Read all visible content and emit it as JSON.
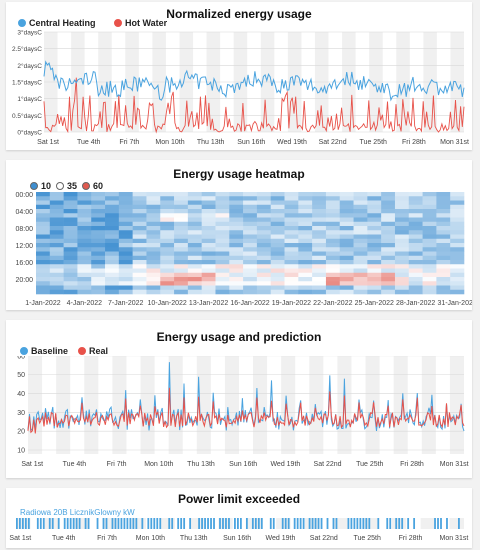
{
  "charts": {
    "energy": {
      "title": "Normalized energy usage",
      "legend": [
        {
          "name": "Central Heating",
          "color": "#4aa3df"
        },
        {
          "name": "Hot Water",
          "color": "#e8524a"
        }
      ],
      "yticks": [
        "0°daysC",
        "0.5°daysC",
        "1°daysC",
        "1.5°daysC",
        "2°daysC",
        "2.5°daysC",
        "3°daysC"
      ],
      "xticks": [
        "Sat 1st",
        "Tue 4th",
        "Fri 7th",
        "Mon 10th",
        "Thu 13th",
        "Sun 16th",
        "Wed 19th",
        "Sat 22nd",
        "Tue 25th",
        "Fri 28th",
        "Mon 31st"
      ]
    },
    "heatmap": {
      "title": "Energy usage heatmap",
      "legend": [
        {
          "name": "10",
          "color": "#3e8ed0"
        },
        {
          "name": "35",
          "color": "#ffffff"
        },
        {
          "name": "60",
          "color": "#e05a4f"
        }
      ],
      "yticks": [
        "00:00",
        "04:00",
        "08:00",
        "12:00",
        "16:00",
        "20:00"
      ],
      "xticks": [
        "1-Jan-2022",
        "4-Jan-2022",
        "7-Jan-2022",
        "10-Jan-2022",
        "13-Jan-2022",
        "16-Jan-2022",
        "19-Jan-2022",
        "22-Jan-2022",
        "25-Jan-2022",
        "28-Jan-2022",
        "31-Jan-2022"
      ]
    },
    "prediction": {
      "title": "Energy usage and prediction",
      "legend": [
        {
          "name": "Baseline",
          "color": "#4aa3df"
        },
        {
          "name": "Real",
          "color": "#e8524a"
        }
      ],
      "yticks": [
        "10",
        "20",
        "30",
        "40",
        "50",
        "60"
      ],
      "xticks": [
        "Sat 1st",
        "Tue 4th",
        "Fri 7th",
        "Mon 10th",
        "Thu 13th",
        "Sun 16th",
        "Wed 19th",
        "Sat 22nd",
        "Tue 25th",
        "Fri 28th",
        "Mon 31st"
      ]
    },
    "power": {
      "title": "Power limit exceeded",
      "series_label": "Radiowa 20B LicznikGlowny kW",
      "color": "#4aa3df",
      "xticks": [
        "Sat 1st",
        "Tue 4th",
        "Fri 7th",
        "Mon 10th",
        "Thu 13th",
        "Sun 16th",
        "Wed 19th",
        "Sat 22nd",
        "Tue 25th",
        "Fri 28th",
        "Mon 31st"
      ]
    }
  },
  "chart_data": [
    {
      "type": "line",
      "title": "Normalized energy usage",
      "x_range": [
        "Sat 1st",
        "Mon 31st"
      ],
      "ylim": [
        0,
        3
      ],
      "series": [
        {
          "name": "Central Heating",
          "approx_daily_mean": [
            1.5,
            1.4,
            1.5,
            1.6,
            1.3,
            1.3,
            1.4,
            1.5,
            1.2,
            1.4,
            1.6,
            1.5,
            1.4,
            1.3,
            1.4,
            1.6,
            1.6,
            1.4,
            1.5,
            1.4,
            1.3,
            1.5,
            1.6,
            1.5,
            1.4,
            1.2,
            1.3,
            1.4,
            1.4,
            1.3,
            1.3
          ]
        },
        {
          "name": "Hot Water",
          "approx_daily_peak": [
            1.0,
            1.6,
            1.8,
            1.1,
            1.0,
            1.2,
            1.1,
            1.2,
            1.1,
            1.3,
            1.1,
            1.2,
            1.0,
            1.2,
            1.1,
            1.2,
            1.2,
            1.2,
            1.2,
            1.1,
            1.3,
            1.2,
            1.3,
            1.1,
            1.2,
            1.1,
            1.0,
            1.1,
            1.2,
            1.1,
            1.0
          ]
        }
      ]
    },
    {
      "type": "heatmap",
      "title": "Energy usage heatmap",
      "color_scale": [
        10,
        35,
        60
      ],
      "x": "1-Jan-2022 .. 31-Jan-2022",
      "y": "00:00 .. 23:00"
    },
    {
      "type": "line",
      "title": "Energy usage and prediction",
      "ylim": [
        10,
        60
      ],
      "series": [
        {
          "name": "Baseline",
          "approx_daily_peak": [
            30,
            32,
            35,
            38,
            34,
            36,
            40,
            42,
            45,
            50,
            55,
            48,
            52,
            50,
            46,
            44,
            48,
            50,
            45,
            40,
            48,
            50,
            52,
            58,
            45,
            40,
            42,
            44,
            40,
            38,
            40
          ]
        },
        {
          "name": "Real",
          "approx_daily_peak": [
            28,
            30,
            32,
            35,
            32,
            34,
            36,
            38,
            38,
            40,
            42,
            40,
            40,
            38,
            36,
            36,
            38,
            40,
            38,
            35,
            38,
            40,
            40,
            38,
            36,
            34,
            36,
            38,
            36,
            34,
            36
          ]
        }
      ]
    },
    {
      "type": "bar",
      "title": "Power limit exceeded",
      "series": [
        {
          "name": "Radiowa 20B LicznikGlowny kW"
        }
      ]
    }
  ]
}
